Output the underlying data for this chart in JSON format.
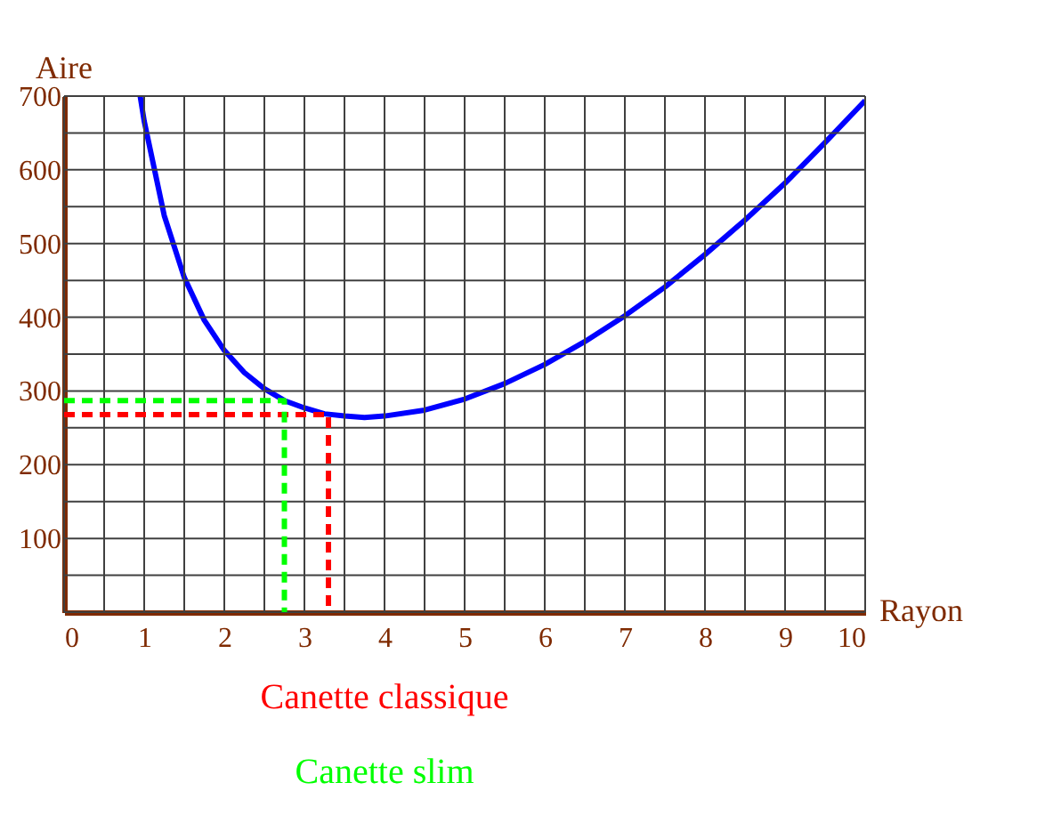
{
  "chart_data": {
    "type": "line",
    "xlabel": "Rayon",
    "ylabel": "Aire",
    "xlim": [
      0,
      10
    ],
    "ylim": [
      0,
      700
    ],
    "xticks": [
      {
        "value": 0,
        "label": "0"
      },
      {
        "value": 0.5,
        "label": null
      },
      1,
      {
        "value": 1.5,
        "label": null
      },
      2,
      {
        "value": 2.5,
        "label": null
      },
      3,
      {
        "value": 3.5,
        "label": null
      },
      4,
      {
        "value": 4.5,
        "label": null
      },
      5,
      {
        "value": 5.5,
        "label": null
      },
      6,
      {
        "value": 6.5,
        "label": null
      },
      7,
      {
        "value": 7.5,
        "label": null
      },
      8,
      {
        "value": 8.5,
        "label": null
      },
      9,
      {
        "value": 9.5,
        "label": null
      },
      10
    ],
    "yticks": [
      {
        "value": 0,
        "label": null
      },
      {
        "value": 50,
        "label": null
      },
      100,
      {
        "value": 150,
        "label": null
      },
      200,
      {
        "value": 250,
        "label": null
      },
      300,
      {
        "value": 350,
        "label": null
      },
      400,
      {
        "value": 450,
        "label": null
      },
      500,
      {
        "value": 550,
        "label": null
      },
      600,
      {
        "value": 650,
        "label": null
      },
      700
    ],
    "grid": true,
    "legend": false,
    "marker": "none",
    "series": [
      {
        "color": "#0000ff",
        "line_style": "solid",
        "x": [
          0.95,
          1,
          1.25,
          1.5,
          1.75,
          2,
          2.25,
          2.5,
          2.75,
          3,
          3.25,
          3.5,
          3.75,
          4,
          4.5,
          5,
          5.5,
          6,
          6.5,
          7,
          7.5,
          8,
          8.5,
          9,
          9.5,
          10
        ],
        "values": [
          700,
          666,
          538,
          454,
          396,
          355,
          325,
          303,
          287,
          277,
          269,
          266,
          264,
          266,
          274,
          289,
          310,
          336,
          367,
          402,
          441,
          485,
          532,
          582,
          637,
          694
        ]
      },
      {
        "name": "Canette classique",
        "color": "#ff0000",
        "line_style": "dashed",
        "x": [
          0,
          3.3,
          3.3
        ],
        "values": [
          268,
          268,
          0
        ]
      },
      {
        "name": "Canette slim",
        "color": "#00ff00",
        "line_style": "dashed",
        "x": [
          0,
          2.75,
          2.75
        ],
        "values": [
          287,
          287,
          0
        ]
      }
    ]
  }
}
